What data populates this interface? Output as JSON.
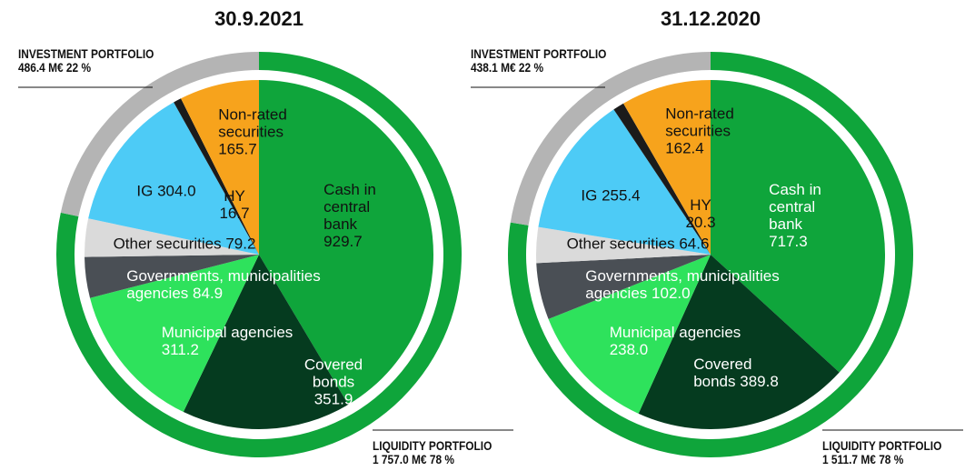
{
  "chart_data": [
    {
      "type": "pie",
      "title": "30.9.2021",
      "categories": [
        "Cash in\ncentral\nbank",
        "Covered\nbonds",
        "Municipal agencies",
        "Governments, municipalities\nagencies",
        "Other securities",
        "IG",
        "HY",
        "Non-rated\nsecurities"
      ],
      "values": [
        929.7,
        351.9,
        311.2,
        84.9,
        79.2,
        304.0,
        16.7,
        165.7
      ],
      "value_labels": [
        "929.7",
        "351.9",
        "311.2",
        "84.9",
        "79.2",
        "304.0",
        "16.7",
        "165.7"
      ],
      "colors": [
        "#0fa53b",
        "#053b1f",
        "#2ee25c",
        "#4a4f55",
        "#dadada",
        "#4dcbf6",
        "#1b1b1b",
        "#f7a31c"
      ],
      "portfolios": [
        {
          "name": "LIQUIDITY PORTFOLIO",
          "value": 1757.0,
          "value_label": "1 757.0 M€ 78 %",
          "color": "#0fa53b"
        },
        {
          "name": "INVESTMENT PORTFOLIO",
          "value": 486.4,
          "value_label": "486.4 M€ 22 %",
          "color": "#b4b4b4"
        }
      ]
    },
    {
      "type": "pie",
      "title": "31.12.2020",
      "categories": [
        "Cash in\ncentral\nbank",
        "Covered\nbonds",
        "Municipal agencies",
        "Governments, municipalities\nagencies",
        "Other securities",
        "IG",
        "HY",
        "Non-rated\nsecurities"
      ],
      "values": [
        717.3,
        389.8,
        238.0,
        102.0,
        64.6,
        255.4,
        20.3,
        162.4
      ],
      "value_labels": [
        "717.3",
        "389.8",
        "238.0",
        "102.0",
        "64.6",
        "255.4",
        "20.3",
        "162.4"
      ],
      "colors": [
        "#0fa53b",
        "#053b1f",
        "#2ee25c",
        "#4a4f55",
        "#dadada",
        "#4dcbf6",
        "#1b1b1b",
        "#f7a31c"
      ],
      "portfolios": [
        {
          "name": "LIQUIDITY PORTFOLIO",
          "value": 1511.7,
          "value_label": "1 511.7 M€ 78 %",
          "color": "#0fa53b"
        },
        {
          "name": "INVESTMENT PORTFOLIO",
          "value": 438.1,
          "value_label": "438.1 M€ 22 %",
          "color": "#b4b4b4"
        }
      ]
    }
  ]
}
